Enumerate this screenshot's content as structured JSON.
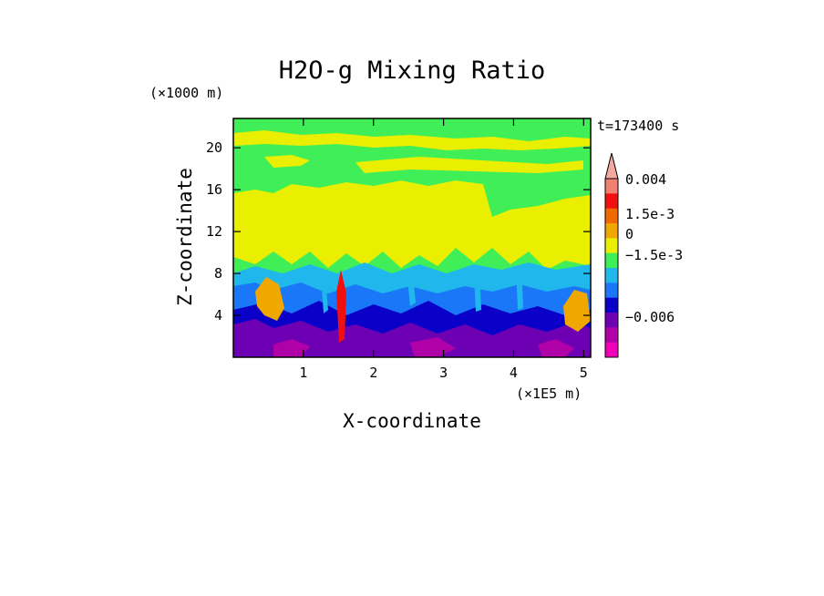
{
  "chart_data": {
    "type": "heatmap",
    "title": "H2O-g Mixing Ratio",
    "xlabel": "X-coordinate",
    "ylabel": "Z-coordinate",
    "x_unit": "(×1E5 m)",
    "y_unit": "(×1000 m)",
    "time_label": "t=173400 s",
    "x_ticks": [
      "1",
      "2",
      "3",
      "4",
      "5"
    ],
    "x_tick_values": [
      1,
      2,
      3,
      4,
      5
    ],
    "y_ticks": [
      "4",
      "8",
      "12",
      "16",
      "20"
    ],
    "y_tick_values": [
      4,
      8,
      12,
      16,
      20
    ],
    "xlim": [
      0,
      5.1
    ],
    "ylim": [
      0,
      22.8
    ],
    "colorbar": {
      "labels": [
        "0.004",
        "1.5e-3",
        "0",
        "−1.5e-3",
        "−0.006"
      ],
      "colors_top_to_bottom": [
        "#f4a8a0",
        "#f08070",
        "#f01010",
        "#f06a00",
        "#f0a800",
        "#eaee00",
        "#40ee58",
        "#20b8ec",
        "#1a78f8",
        "#0a00c8",
        "#6e00b4",
        "#b000a8",
        "#f000b8"
      ]
    },
    "bands": [
      {
        "name": "low-purple",
        "color": "#6e00b4"
      },
      {
        "name": "blue",
        "color": "#1a78f8"
      },
      {
        "name": "dark-blue",
        "color": "#0a00c8"
      },
      {
        "name": "cyan",
        "color": "#20b8ec"
      },
      {
        "name": "green",
        "color": "#40ee58"
      },
      {
        "name": "yellow",
        "color": "#eaee00"
      },
      {
        "name": "orange",
        "color": "#f0a800"
      },
      {
        "name": "red",
        "color": "#f01010"
      },
      {
        "name": "magenta",
        "color": "#b000a8"
      }
    ]
  }
}
